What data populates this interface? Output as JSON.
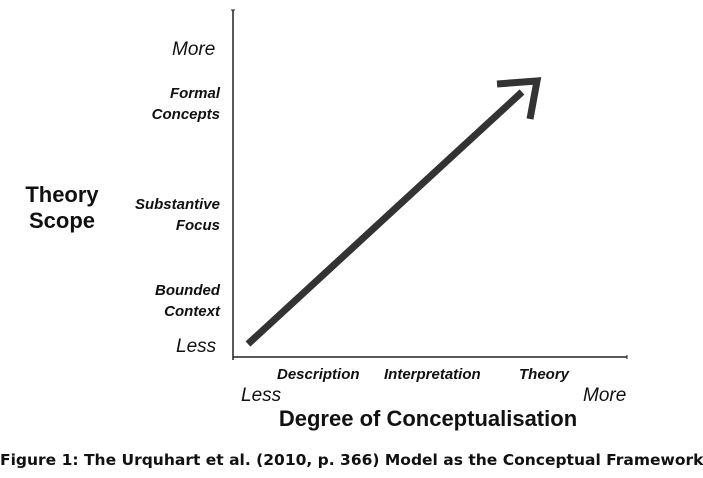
{
  "diagram": {
    "y_axis": {
      "title_lines": [
        "Theory",
        "Scope"
      ],
      "more": "More",
      "less": "Less",
      "levels": [
        {
          "lines": [
            "Formal",
            "Concepts"
          ]
        },
        {
          "lines": [
            "Substantive",
            "Focus"
          ]
        },
        {
          "lines": [
            "Bounded",
            "Context"
          ]
        }
      ]
    },
    "x_axis": {
      "title": "Degree of Conceptualisation",
      "less": "Less",
      "more": "More",
      "levels": [
        "Description",
        "Interpretation",
        "Theory"
      ]
    },
    "arrow_color": "#333333",
    "axis_color": "#222222"
  },
  "caption": "Figure 1: The Urquhart et al. (2010, p. 366) Model as the Conceptual Framework"
}
